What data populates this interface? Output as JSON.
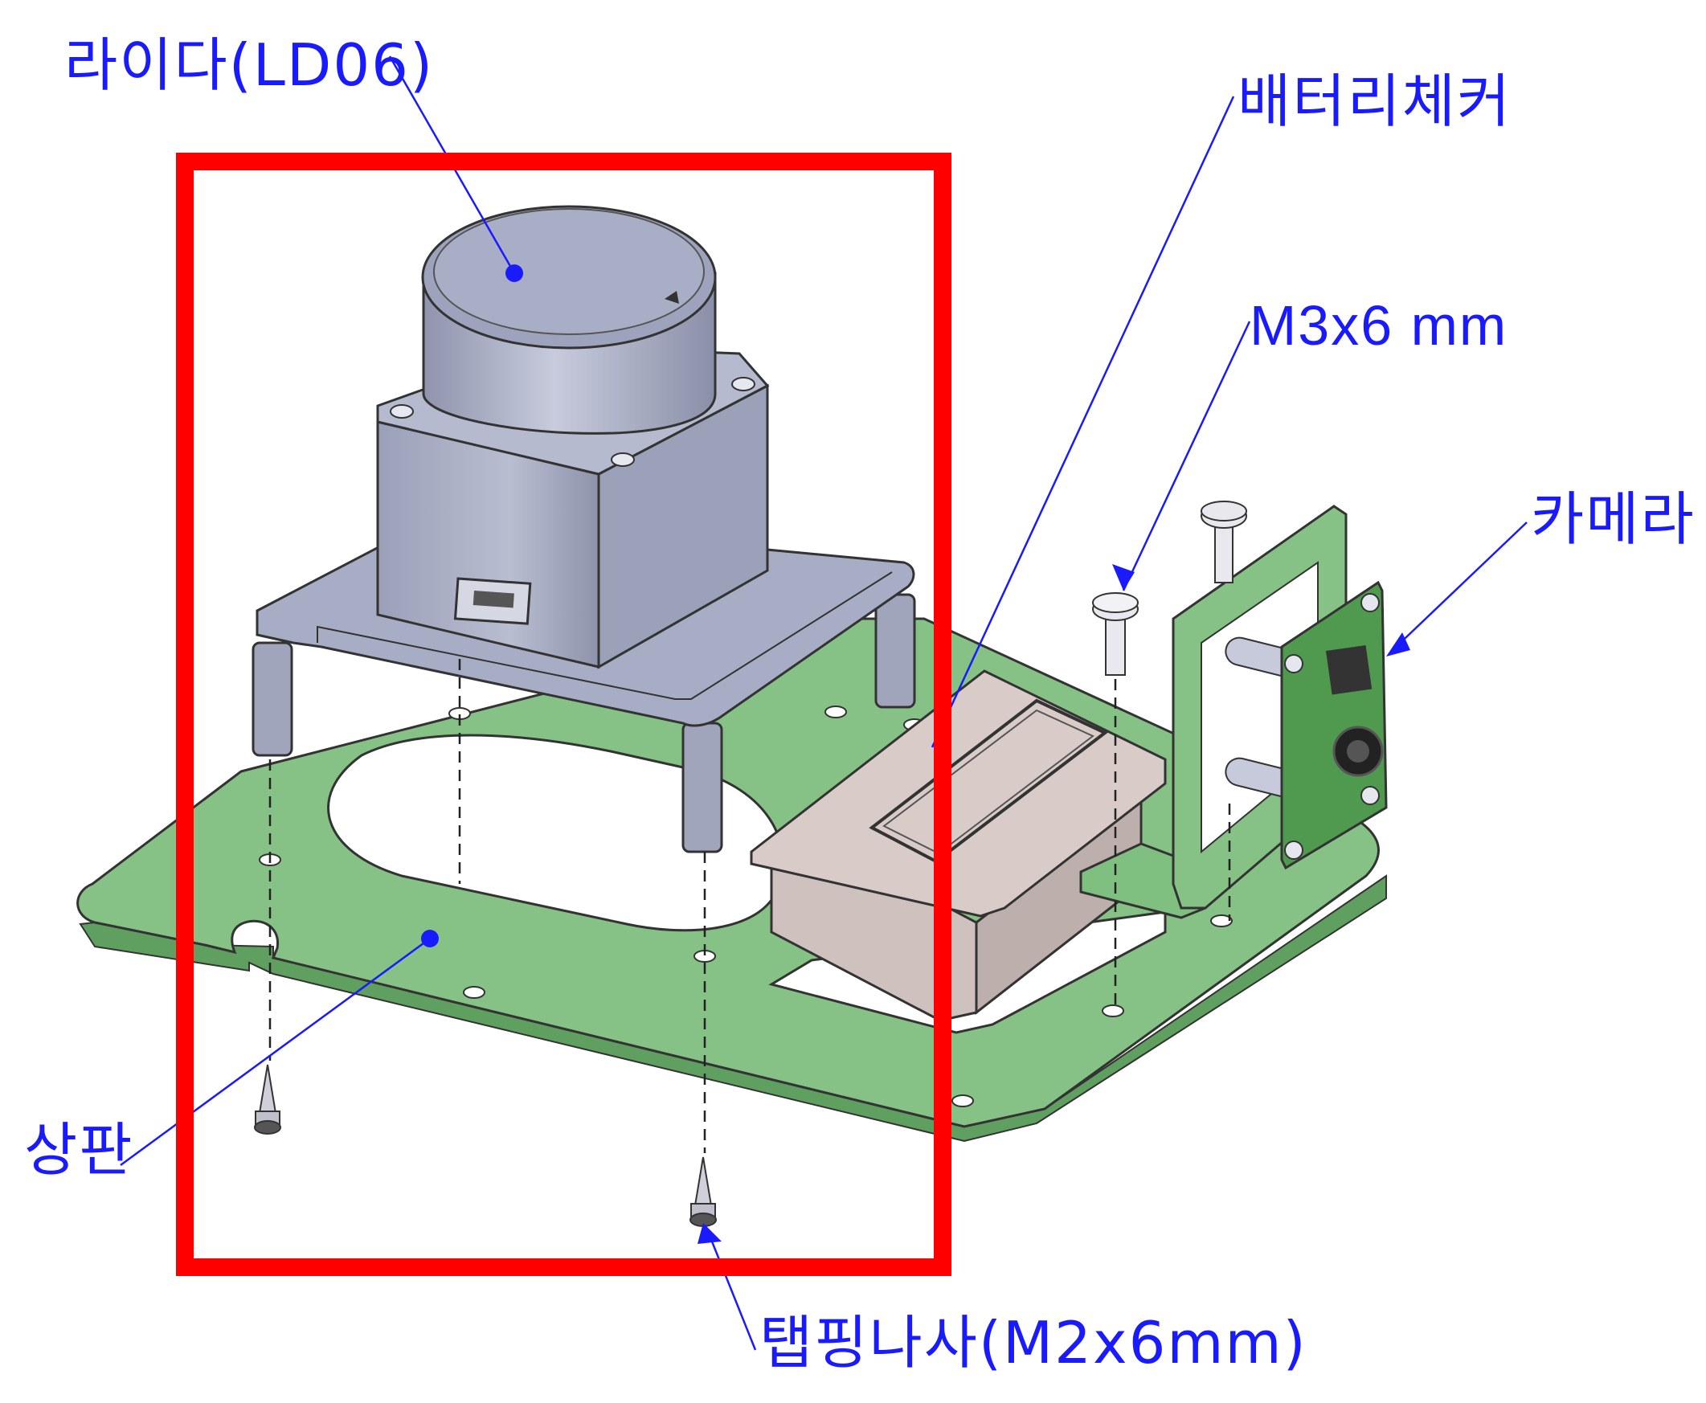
{
  "diagram": {
    "kind": "exploded assembly drawing",
    "labels": {
      "lidar": "라이다(LD06)",
      "battery_checker": "배터리체커",
      "screw_m3": "M3x6 mm",
      "camera": "카메라",
      "top_plate": "상판",
      "tapping_screw": "탭핑나사(M2x6mm)"
    },
    "highlight": {
      "color": "#ff0000",
      "target": "lidar"
    },
    "colors": {
      "callout": "#1a1aff",
      "plate": "#86c286",
      "lidar_body": "#a8adc6",
      "battery": "#d9ccc8",
      "camera_pcb": "#4f9a4f"
    }
  }
}
